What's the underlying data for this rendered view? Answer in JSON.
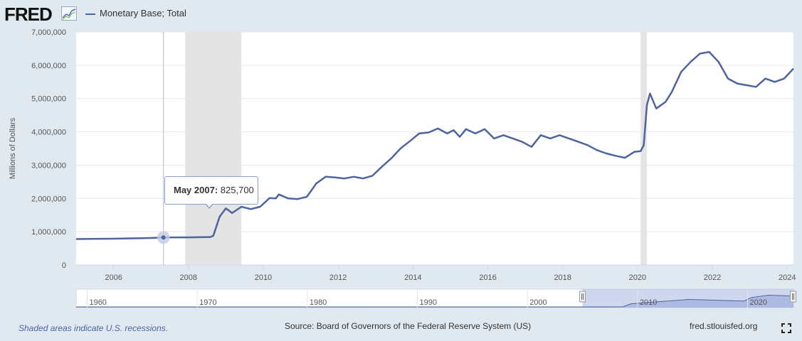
{
  "header": {
    "logo_text": "FRED",
    "legend_label": "Monetary Base; Total"
  },
  "tooltip": {
    "date": "May 2007:",
    "value": "825,700"
  },
  "footer": {
    "note": "Shaded areas indicate U.S. recessions.",
    "source": "Source: Board of Governors of the Federal Reserve System (US)",
    "url": "fred.stlouisfed.org"
  },
  "colors": {
    "series": "#4d64a0",
    "recession": "#e4e4e4",
    "background": "#e1e9f0",
    "plot_background": "#ffffff",
    "navigator_fill": "#a8b6e0",
    "accent_link": "#4a62a8"
  },
  "chart_data": {
    "type": "line",
    "title": "",
    "xlabel": "",
    "ylabel": "Millions of Dollars",
    "xlim": [
      "2005-01-01",
      "2024-03-01"
    ],
    "ylim": [
      0,
      7000000
    ],
    "x_ticks": [
      "2006",
      "2008",
      "2010",
      "2012",
      "2014",
      "2016",
      "2018",
      "2020",
      "2022",
      "2024"
    ],
    "y_ticks": [
      "0",
      "1,000,000",
      "2,000,000",
      "3,000,000",
      "4,000,000",
      "5,000,000",
      "6,000,000",
      "7,000,000"
    ],
    "grid": true,
    "legend": "top-left",
    "recessions": [
      {
        "start": "2007-12",
        "end": "2009-06"
      },
      {
        "start": "2020-02",
        "end": "2020-04"
      }
    ],
    "series": [
      {
        "name": "Monetary Base; Total",
        "points": [
          [
            "2005-01",
            780000
          ],
          [
            "2006-01",
            790000
          ],
          [
            "2007-01",
            810000
          ],
          [
            "2007-05",
            825700
          ],
          [
            "2008-01",
            830000
          ],
          [
            "2008-08",
            840000
          ],
          [
            "2008-09",
            880000
          ],
          [
            "2008-11",
            1450000
          ],
          [
            "2009-01",
            1700000
          ],
          [
            "2009-03",
            1560000
          ],
          [
            "2009-06",
            1750000
          ],
          [
            "2009-09",
            1680000
          ],
          [
            "2009-12",
            1750000
          ],
          [
            "2010-03",
            2010000
          ],
          [
            "2010-05",
            2000000
          ],
          [
            "2010-06",
            2120000
          ],
          [
            "2010-09",
            2000000
          ],
          [
            "2010-12",
            1980000
          ],
          [
            "2011-03",
            2050000
          ],
          [
            "2011-06",
            2450000
          ],
          [
            "2011-09",
            2650000
          ],
          [
            "2011-12",
            2630000
          ],
          [
            "2012-03",
            2600000
          ],
          [
            "2012-06",
            2650000
          ],
          [
            "2012-09",
            2600000
          ],
          [
            "2012-12",
            2680000
          ],
          [
            "2013-03",
            2950000
          ],
          [
            "2013-06",
            3200000
          ],
          [
            "2013-09",
            3500000
          ],
          [
            "2013-12",
            3720000
          ],
          [
            "2014-03",
            3950000
          ],
          [
            "2014-06",
            3980000
          ],
          [
            "2014-09",
            4100000
          ],
          [
            "2014-12",
            3950000
          ],
          [
            "2015-02",
            4050000
          ],
          [
            "2015-04",
            3850000
          ],
          [
            "2015-06",
            4080000
          ],
          [
            "2015-09",
            3950000
          ],
          [
            "2015-12",
            4080000
          ],
          [
            "2016-03",
            3800000
          ],
          [
            "2016-06",
            3900000
          ],
          [
            "2016-09",
            3800000
          ],
          [
            "2016-12",
            3700000
          ],
          [
            "2017-03",
            3550000
          ],
          [
            "2017-06",
            3900000
          ],
          [
            "2017-09",
            3800000
          ],
          [
            "2017-12",
            3900000
          ],
          [
            "2018-03",
            3800000
          ],
          [
            "2018-06",
            3700000
          ],
          [
            "2018-09",
            3600000
          ],
          [
            "2018-12",
            3450000
          ],
          [
            "2019-03",
            3350000
          ],
          [
            "2019-06",
            3280000
          ],
          [
            "2019-09",
            3220000
          ],
          [
            "2019-12",
            3400000
          ],
          [
            "2020-02",
            3420000
          ],
          [
            "2020-03",
            3600000
          ],
          [
            "2020-04",
            4800000
          ],
          [
            "2020-05",
            5150000
          ],
          [
            "2020-07",
            4700000
          ],
          [
            "2020-10",
            4900000
          ],
          [
            "2020-12",
            5200000
          ],
          [
            "2021-03",
            5800000
          ],
          [
            "2021-06",
            6100000
          ],
          [
            "2021-09",
            6350000
          ],
          [
            "2021-12",
            6400000
          ],
          [
            "2022-03",
            6100000
          ],
          [
            "2022-06",
            5600000
          ],
          [
            "2022-09",
            5450000
          ],
          [
            "2022-12",
            5400000
          ],
          [
            "2023-03",
            5350000
          ],
          [
            "2023-06",
            5600000
          ],
          [
            "2023-09",
            5500000
          ],
          [
            "2023-12",
            5600000
          ],
          [
            "2024-03",
            5900000
          ]
        ]
      }
    ],
    "navigator": {
      "x_ticks": [
        "1960",
        "1970",
        "1980",
        "1990",
        "2000",
        "2010",
        "2020"
      ],
      "range_start": "1959-01",
      "range_end": "2024-03",
      "window_start": "2005-01",
      "window_end": "2024-03",
      "points": [
        [
          "1959-01",
          0
        ],
        [
          "2007-01",
          0
        ],
        [
          "2008-09",
          50000
        ],
        [
          "2009-06",
          1700000
        ],
        [
          "2014-09",
          4100000
        ],
        [
          "2019-09",
          3220000
        ],
        [
          "2020-05",
          5150000
        ],
        [
          "2021-12",
          6400000
        ],
        [
          "2024-03",
          5900000
        ]
      ]
    }
  }
}
